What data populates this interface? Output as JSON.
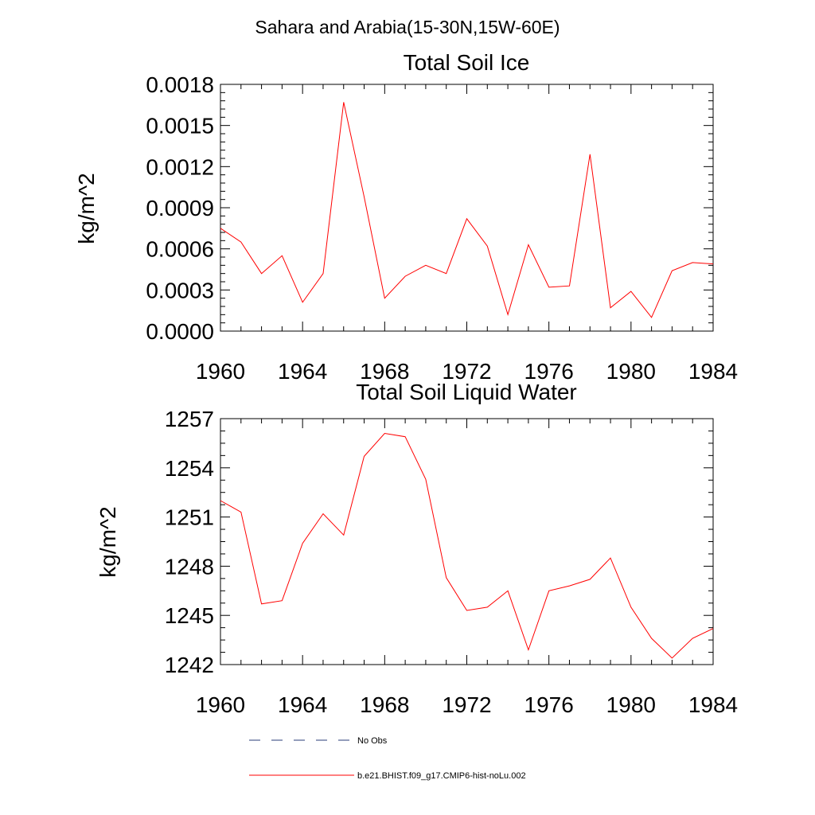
{
  "figure": {
    "suptitle": "Sahara and Arabia(15-30N,15W-60E)"
  },
  "chart_data": [
    {
      "type": "line",
      "title": "Total Soil Ice",
      "xlabel": "",
      "ylabel": "kg/m^2",
      "xlim": [
        1960,
        1984
      ],
      "ylim": [
        0,
        0.0018
      ],
      "xticks": [
        1960,
        1964,
        1968,
        1972,
        1976,
        1980,
        1984
      ],
      "xtick_labels": [
        "1960",
        "1964",
        "1968",
        "1972",
        "1976",
        "1980",
        "1984"
      ],
      "yticks": [
        0,
        0.0003,
        0.0006,
        0.0009,
        0.0012,
        0.0015,
        0.0018
      ],
      "ytick_labels": [
        "0.0000",
        "0.0003",
        "0.0006",
        "0.0009",
        "0.0012",
        "0.0015",
        "0.0018"
      ],
      "grid": false,
      "x": [
        1960,
        1961,
        1962,
        1963,
        1964,
        1965,
        1966,
        1967,
        1968,
        1969,
        1970,
        1971,
        1972,
        1973,
        1974,
        1975,
        1976,
        1977,
        1978,
        1979,
        1980,
        1981,
        1982,
        1983,
        1984
      ],
      "series": [
        {
          "name": "b.e21.BHIST.f09_g17.CMIP6-hist-noLu.002",
          "color": "#ff0000",
          "values": [
            0.00075,
            0.00065,
            0.00042,
            0.00055,
            0.00021,
            0.00042,
            0.00167,
            0.00098,
            0.00024,
            0.0004,
            0.00048,
            0.00042,
            0.00082,
            0.00062,
            0.00012,
            0.00063,
            0.00032,
            0.00033,
            0.00129,
            0.00017,
            0.00029,
            0.0001,
            0.00044,
            0.0005,
            0.00049
          ]
        }
      ]
    },
    {
      "type": "line",
      "title": "Total Soil Liquid Water",
      "xlabel": "",
      "ylabel": "kg/m^2",
      "xlim": [
        1960,
        1984
      ],
      "ylim": [
        1242,
        1257
      ],
      "xticks": [
        1960,
        1964,
        1968,
        1972,
        1976,
        1980,
        1984
      ],
      "xtick_labels": [
        "1960",
        "1964",
        "1968",
        "1972",
        "1976",
        "1980",
        "1984"
      ],
      "yticks": [
        1242,
        1245,
        1248,
        1251,
        1254,
        1257
      ],
      "ytick_labels": [
        "1242",
        "1245",
        "1248",
        "1251",
        "1254",
        "1257"
      ],
      "grid": false,
      "x": [
        1960,
        1961,
        1962,
        1963,
        1964,
        1965,
        1966,
        1967,
        1968,
        1969,
        1970,
        1971,
        1972,
        1973,
        1974,
        1975,
        1976,
        1977,
        1978,
        1979,
        1980,
        1981,
        1982,
        1983,
        1984
      ],
      "series": [
        {
          "name": "b.e21.BHIST.f09_g17.CMIP6-hist-noLu.002",
          "color": "#ff0000",
          "values": [
            1252.0,
            1251.3,
            1245.7,
            1245.9,
            1249.4,
            1251.2,
            1249.9,
            1254.7,
            1256.1,
            1255.9,
            1253.3,
            1247.3,
            1245.3,
            1245.5,
            1246.5,
            1242.9,
            1246.5,
            1246.8,
            1247.2,
            1248.5,
            1245.5,
            1243.6,
            1242.4,
            1243.6,
            1244.2
          ]
        }
      ]
    }
  ],
  "legend": {
    "items": [
      {
        "label": "No Obs",
        "style": "dashed",
        "color": "#283c78"
      },
      {
        "label": "b.e21.BHIST.f09_g17.CMIP6-hist-noLu.002",
        "style": "solid",
        "color": "#ff0000"
      }
    ]
  }
}
